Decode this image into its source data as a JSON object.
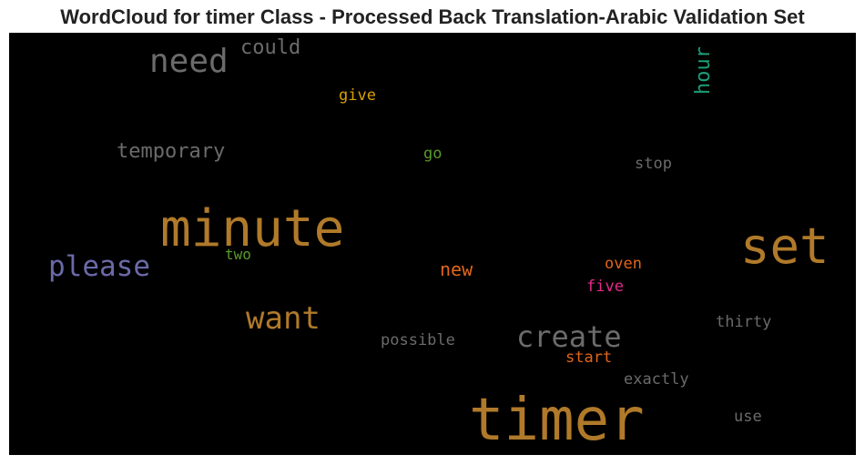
{
  "chart_data": {
    "type": "wordcloud",
    "title": "WordCloud for timer Class - Processed Back Translation-Arabic Validation Set",
    "background": "#000000",
    "words": [
      {
        "text": "timer",
        "color": "#b07a2a"
      },
      {
        "text": "minute",
        "color": "#b07a2a"
      },
      {
        "text": "set",
        "color": "#b07a2a"
      },
      {
        "text": "need",
        "color": "#6b6b6b"
      },
      {
        "text": "want",
        "color": "#b07a2a"
      },
      {
        "text": "please",
        "color": "#6a6aa8"
      },
      {
        "text": "create",
        "color": "#6b6b6b"
      },
      {
        "text": "could",
        "color": "#6b6b6b"
      },
      {
        "text": "hour",
        "color": "#1b9e77"
      },
      {
        "text": "temporary",
        "color": "#6b6b6b"
      },
      {
        "text": "give",
        "color": "#d9a000"
      },
      {
        "text": "go",
        "color": "#5a9a2a"
      },
      {
        "text": "stop",
        "color": "#6b6b6b"
      },
      {
        "text": "new",
        "color": "#e0661a"
      },
      {
        "text": "two",
        "color": "#5a9a2a"
      },
      {
        "text": "oven",
        "color": "#e0661a"
      },
      {
        "text": "five",
        "color": "#e7298a"
      },
      {
        "text": "thirty",
        "color": "#6b6b6b"
      },
      {
        "text": "possible",
        "color": "#6b6b6b"
      },
      {
        "text": "start",
        "color": "#e0661a"
      },
      {
        "text": "exactly",
        "color": "#6b6b6b"
      },
      {
        "text": "use",
        "color": "#6b6b6b"
      }
    ]
  }
}
